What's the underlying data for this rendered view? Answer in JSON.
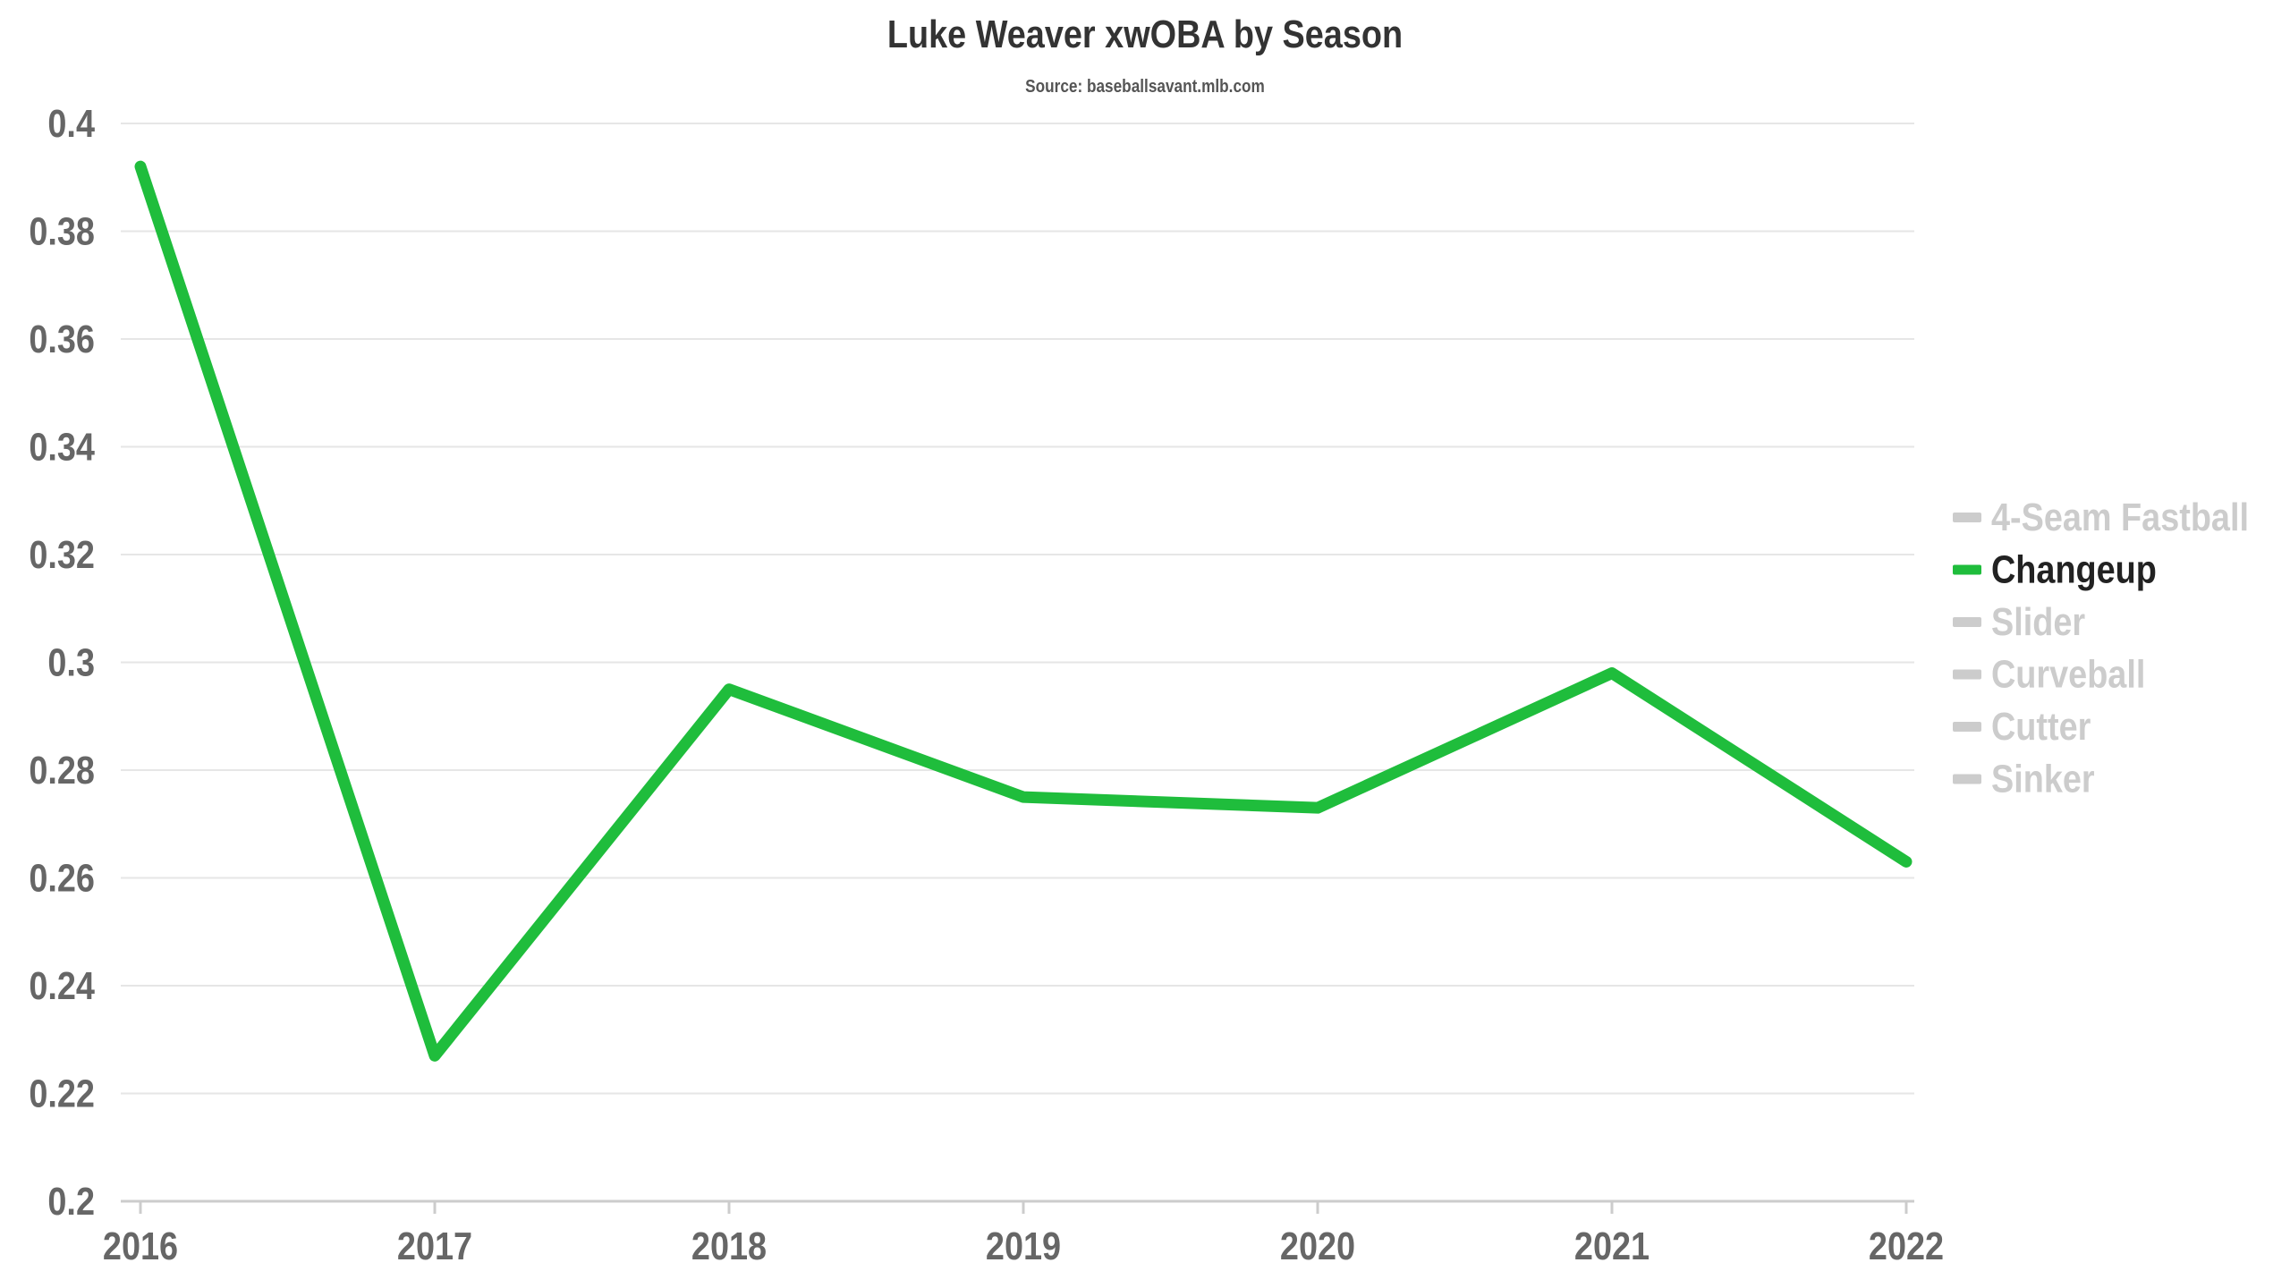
{
  "chart_data": {
    "type": "line",
    "title": "Luke Weaver xwOBA by Season",
    "subtitle": "Source: baseballsavant.mlb.com",
    "xlabel": "",
    "ylabel": "",
    "x": [
      "2016",
      "2017",
      "2018",
      "2019",
      "2020",
      "2021",
      "2022"
    ],
    "y_ticks": [
      "0.4",
      "0.38",
      "0.36",
      "0.34",
      "0.32",
      "0.3",
      "0.28",
      "0.26",
      "0.24",
      "0.22",
      "0.2"
    ],
    "ylim": [
      0.2,
      0.4
    ],
    "grid": true,
    "legend_position": "right",
    "series": [
      {
        "name": "Changeup",
        "color": "#1fbd3c",
        "values": [
          0.392,
          0.227,
          0.295,
          0.275,
          0.273,
          0.298,
          0.263
        ]
      }
    ],
    "legend": [
      {
        "label": "4-Seam Fastball",
        "active": false
      },
      {
        "label": "Changeup",
        "active": true
      },
      {
        "label": "Slider",
        "active": false
      },
      {
        "label": "Curveball",
        "active": false
      },
      {
        "label": "Cutter",
        "active": false
      },
      {
        "label": "Sinker",
        "active": false
      }
    ],
    "colors": {
      "active_line": "#1fbd3c",
      "inactive_legend": "#cccccc",
      "active_legend_text": "#222222",
      "grid": "#e6e6e6",
      "tick_text": "#666666"
    }
  }
}
